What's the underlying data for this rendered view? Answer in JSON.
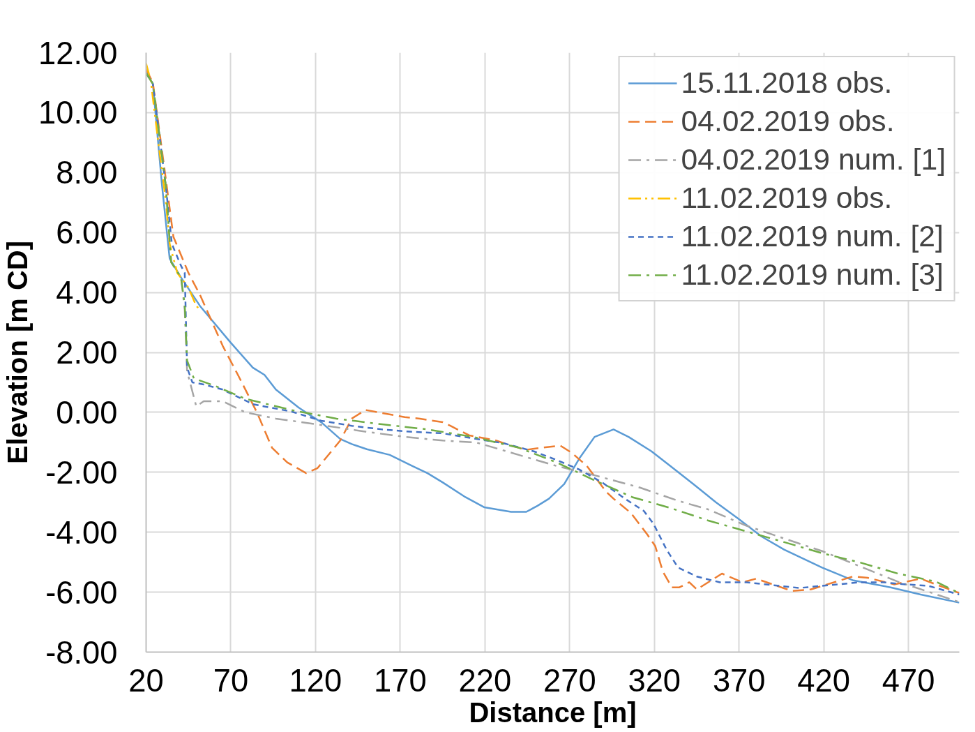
{
  "chart_data": {
    "type": "line",
    "xlabel": "Distance [m]",
    "ylabel": "Elevation [m CD]",
    "xlim": [
      20,
      500
    ],
    "xticks": [
      20,
      70,
      120,
      170,
      220,
      270,
      320,
      370,
      420,
      470
    ],
    "ylim": [
      -8,
      12
    ],
    "yticks": [
      {
        "value": -8,
        "label": "-8.00"
      },
      {
        "value": -6,
        "label": "-6.00"
      },
      {
        "value": -4,
        "label": "-4.00"
      },
      {
        "value": -2,
        "label": "-2.00"
      },
      {
        "value": 0,
        "label": "0.00"
      },
      {
        "value": 2,
        "label": "2.00"
      },
      {
        "value": 4,
        "label": "4.00"
      },
      {
        "value": 6,
        "label": "6.00"
      },
      {
        "value": 8,
        "label": "8.00"
      },
      {
        "value": 10,
        "label": "10.00"
      },
      {
        "value": 12,
        "label": "12.00"
      }
    ],
    "grid": true,
    "legend": "top right",
    "marker": "none",
    "series": [
      {
        "name": "15.11.2018 obs.",
        "color": "#5b9bd5",
        "line_style": "solid",
        "x": [
          20,
          24,
          29.4,
          33.9,
          40.6,
          51.8,
          69.7,
          83,
          89.9,
          96.6,
          110,
          114.5,
          123.4,
          134.6,
          141.4,
          150.3,
          163.8,
          177.2,
          186.1,
          195.1,
          208.5,
          219.7,
          235.4,
          244.4,
          251,
          257.8,
          266.8,
          275.7,
          284.7,
          295.9,
          304.8,
          318.3,
          329.4,
          342.9,
          356.3,
          369.8,
          383.2,
          396.6,
          419,
          437,
          459.4,
          477.2,
          500
        ],
        "values": [
          11.32,
          10.96,
          7.56,
          5.13,
          4.5,
          3.55,
          2.34,
          1.49,
          1.25,
          0.76,
          0.16,
          -0.01,
          -0.33,
          -0.89,
          -1.06,
          -1.23,
          -1.42,
          -1.79,
          -2.03,
          -2.34,
          -2.83,
          -3.17,
          -3.32,
          -3.32,
          -3.12,
          -2.88,
          -2.39,
          -1.54,
          -0.82,
          -0.57,
          -0.82,
          -1.3,
          -1.79,
          -2.39,
          -3.0,
          -3.56,
          -4.14,
          -4.58,
          -5.18,
          -5.6,
          -5.84,
          -6.08,
          -6.35
        ]
      },
      {
        "name": "04.02.2019 obs.",
        "color": "#ed7d31",
        "line_style": "dashed",
        "x": [
          20,
          24,
          31.6,
          36.1,
          45,
          51.8,
          65.2,
          74.2,
          85.4,
          94.3,
          103.3,
          114.5,
          121.2,
          134.6,
          141.4,
          149.4,
          172.7,
          181.6,
          195.1,
          199.6,
          210.8,
          226.5,
          235.4,
          244.4,
          253.3,
          264.5,
          271.2,
          280.2,
          291.4,
          295.9,
          306.2,
          316,
          320.5,
          325,
          330.3,
          334.8,
          340.6,
          345.1,
          359.9,
          372,
          380.1,
          401.1,
          412.3,
          437,
          445.9,
          461.6,
          477.2,
          486.2,
          500
        ],
        "values": [
          11.44,
          11.0,
          7.8,
          5.86,
          4.65,
          3.92,
          2.22,
          1.25,
          0.0,
          -1.18,
          -1.67,
          -2.03,
          -1.86,
          -0.94,
          -0.21,
          0.08,
          -0.16,
          -0.21,
          -0.33,
          -0.45,
          -0.77,
          -0.94,
          -1.11,
          -1.25,
          -1.18,
          -1.11,
          -1.35,
          -1.79,
          -2.64,
          -2.88,
          -3.36,
          -4.09,
          -4.46,
          -5.31,
          -5.84,
          -5.84,
          -5.67,
          -5.91,
          -5.38,
          -5.67,
          -5.55,
          -5.96,
          -5.91,
          -5.48,
          -5.52,
          -5.74,
          -5.55,
          -5.74,
          -6.03
        ]
      },
      {
        "name": "04.02.2019 num. [1]",
        "color": "#a5a5a5",
        "line_style": "dashdot",
        "x": [
          20,
          24,
          31.6,
          34.8,
          40.6,
          42.8,
          44.2,
          49.6,
          54,
          65.2,
          78.7,
          96.6,
          114.5,
          132.4,
          150.3,
          172.7,
          195.1,
          215.2,
          239.9,
          262.3,
          284.7,
          311.5,
          333.9,
          351.8,
          374.2,
          396.6,
          419,
          441.4,
          463.8,
          500
        ],
        "values": [
          11.32,
          10.96,
          7.56,
          5.01,
          4.5,
          3.43,
          1.37,
          0.2,
          0.37,
          0.37,
          0.0,
          -0.21,
          -0.35,
          -0.5,
          -0.65,
          -0.82,
          -0.94,
          -1.01,
          -1.42,
          -1.79,
          -2.1,
          -2.51,
          -2.95,
          -3.24,
          -3.78,
          -4.21,
          -4.63,
          -5.14,
          -5.65,
          -6.33
        ]
      },
      {
        "name": "11.02.2019 obs.",
        "color": "#ffc000",
        "line_style": "dashdotdot",
        "x": [
          20,
          22.7,
          27.2,
          31.6,
          33.9,
          38.4,
          45,
          49.6,
          51.8
        ],
        "values": [
          11.64,
          11.08,
          9.01,
          7.07,
          5.62,
          4.65,
          4.16,
          3.55,
          3.43
        ]
      },
      {
        "name": "11.02.2019 num. [2]",
        "color": "#4472c4",
        "line_style": "dotted",
        "x": [
          20,
          24,
          31.6,
          35.2,
          40.6,
          42.8,
          44.2,
          47.3,
          54,
          65.2,
          83.1,
          105.5,
          123.4,
          141.4,
          159.3,
          177.2,
          195.1,
          213,
          231,
          248.8,
          262.3,
          275.7,
          289.2,
          302.6,
          313.8,
          319.6,
          327.2,
          334,
          345.1,
          358.6,
          374.2,
          405.6,
          419,
          441.4,
          455,
          468.3,
          481.7,
          500
        ],
        "values": [
          11.32,
          10.96,
          7.56,
          5.62,
          4.89,
          4.65,
          1.49,
          1.0,
          0.93,
          0.76,
          0.27,
          0.03,
          -0.28,
          -0.45,
          -0.57,
          -0.65,
          -0.7,
          -0.87,
          -1.03,
          -1.3,
          -1.59,
          -1.91,
          -2.34,
          -2.88,
          -3.29,
          -3.73,
          -4.58,
          -5.18,
          -5.48,
          -5.67,
          -5.67,
          -5.86,
          -5.79,
          -5.67,
          -5.67,
          -5.74,
          -5.79,
          -6.08
        ]
      },
      {
        "name": "11.02.2019 num. [3]",
        "color": "#70ad47",
        "line_style": "dashdot",
        "x": [
          20,
          24,
          31.6,
          34.8,
          40.6,
          42.8,
          44.2,
          48.2,
          60.8,
          78.7,
          105.5,
          132.4,
          159.3,
          186.2,
          213,
          239.9,
          262.3,
          284.7,
          307,
          329.4,
          351.8,
          374.2,
          396.6,
          419,
          441.4,
          463.8,
          486.2,
          500
        ],
        "values": [
          11.32,
          10.96,
          7.56,
          5.01,
          4.5,
          3.6,
          1.73,
          1.13,
          0.88,
          0.45,
          0.08,
          -0.21,
          -0.4,
          -0.57,
          -0.82,
          -1.18,
          -1.67,
          -2.27,
          -2.83,
          -3.19,
          -3.61,
          -3.97,
          -4.33,
          -4.7,
          -5.01,
          -5.38,
          -5.65,
          -6.03
        ]
      }
    ]
  }
}
